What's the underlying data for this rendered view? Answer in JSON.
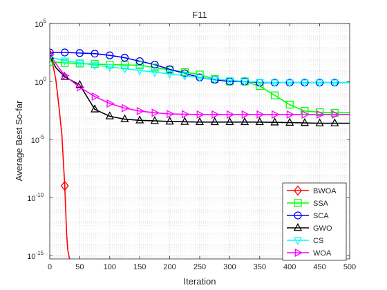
{
  "chart_data": {
    "type": "line",
    "title": "F11",
    "xlabel": "Iteration",
    "ylabel": "Average Best So-far",
    "xlim": [
      0,
      500
    ],
    "ylim_exponent": [
      -15.3,
      5
    ],
    "yscale": "log",
    "grid": true,
    "minor_grid": true,
    "legend_position": "bottom-right",
    "x_ticks": [
      0,
      50,
      100,
      150,
      200,
      250,
      300,
      350,
      400,
      450,
      500
    ],
    "y_ticks": [
      {
        "exp": 5,
        "label": "10",
        "sup": "5"
      },
      {
        "exp": 0,
        "label": "10",
        "sup": "0"
      },
      {
        "exp": -5,
        "label": "10",
        "sup": "-5"
      },
      {
        "exp": -10,
        "label": "10",
        "sup": "-10"
      },
      {
        "exp": -15,
        "label": "10",
        "sup": "-15"
      }
    ],
    "series": [
      {
        "name": "BWOA",
        "color": "#ff0000",
        "marker": "diamond",
        "points": [
          [
            0,
            2.3
          ],
          [
            5,
            1.5
          ],
          [
            10,
            0.2
          ],
          [
            15,
            -2
          ],
          [
            20,
            -4.5
          ],
          [
            25,
            -9
          ],
          [
            28,
            -13
          ],
          [
            30,
            -14.5
          ],
          [
            33,
            -15.3
          ]
        ],
        "marker_x": [
          0,
          25
        ]
      },
      {
        "name": "SSA",
        "color": "#00ff00",
        "marker": "square",
        "points": [
          [
            0,
            1.7
          ],
          [
            25,
            1.6
          ],
          [
            50,
            1.55
          ],
          [
            100,
            1.45
          ],
          [
            150,
            1.4
          ],
          [
            200,
            1.0
          ],
          [
            250,
            0.6
          ],
          [
            275,
            0.2
          ],
          [
            300,
            0.0
          ],
          [
            325,
            0.0
          ],
          [
            350,
            -0.4
          ],
          [
            375,
            -1.2
          ],
          [
            400,
            -2
          ],
          [
            425,
            -2.55
          ],
          [
            450,
            -2.65
          ],
          [
            475,
            -2.7
          ],
          [
            500,
            -2.7
          ]
        ],
        "marker_x": [
          0,
          25,
          50,
          75,
          100,
          125,
          150,
          175,
          200,
          225,
          250,
          275,
          300,
          325,
          350,
          375,
          400,
          425,
          450,
          475
        ]
      },
      {
        "name": "SCA",
        "color": "#0000ff",
        "marker": "circle",
        "points": [
          [
            0,
            2.5
          ],
          [
            25,
            2.5
          ],
          [
            50,
            2.45
          ],
          [
            75,
            2.4
          ],
          [
            100,
            2.25
          ],
          [
            125,
            2.05
          ],
          [
            150,
            1.75
          ],
          [
            175,
            1.45
          ],
          [
            200,
            1.05
          ],
          [
            225,
            0.7
          ],
          [
            250,
            0.35
          ],
          [
            275,
            0.15
          ],
          [
            300,
            0.0
          ],
          [
            325,
            0.0
          ],
          [
            350,
            -0.1
          ],
          [
            375,
            -0.1
          ],
          [
            400,
            -0.1
          ],
          [
            450,
            -0.1
          ],
          [
            500,
            -0.1
          ]
        ],
        "marker_x": [
          0,
          25,
          50,
          75,
          100,
          125,
          150,
          175,
          200,
          225,
          250,
          275,
          300,
          325,
          350,
          375,
          400,
          425,
          450,
          475
        ]
      },
      {
        "name": "GWO",
        "color": "#000000",
        "marker": "triangle-up",
        "points": [
          [
            0,
            2.2
          ],
          [
            10,
            1.2
          ],
          [
            25,
            0.4
          ],
          [
            50,
            -0.3
          ],
          [
            75,
            -2.4
          ],
          [
            100,
            -3.0
          ],
          [
            125,
            -3.25
          ],
          [
            150,
            -3.35
          ],
          [
            175,
            -3.4
          ],
          [
            200,
            -3.45
          ],
          [
            250,
            -3.5
          ],
          [
            300,
            -3.5
          ],
          [
            350,
            -3.5
          ],
          [
            400,
            -3.55
          ],
          [
            450,
            -3.6
          ],
          [
            500,
            -3.6
          ]
        ],
        "marker_x": [
          0,
          25,
          50,
          75,
          100,
          125,
          150,
          175,
          200,
          225,
          250,
          275,
          300,
          325,
          350,
          375,
          400,
          425,
          450,
          475
        ]
      },
      {
        "name": "CS",
        "color": "#00ffff",
        "marker": "triangle-down",
        "points": [
          [
            0,
            2.1
          ],
          [
            25,
            1.8
          ],
          [
            50,
            1.6
          ],
          [
            75,
            1.4
          ],
          [
            100,
            1.25
          ],
          [
            125,
            1.1
          ],
          [
            150,
            0.95
          ],
          [
            175,
            0.8
          ],
          [
            200,
            0.65
          ],
          [
            225,
            0.5
          ],
          [
            250,
            0.35
          ],
          [
            275,
            0.2
          ],
          [
            300,
            0.1
          ],
          [
            325,
            0.0
          ],
          [
            350,
            -0.05
          ],
          [
            375,
            -0.1
          ],
          [
            400,
            -0.1
          ],
          [
            450,
            -0.1
          ],
          [
            500,
            -0.1
          ]
        ],
        "marker_x": [
          0,
          25,
          50,
          75,
          100,
          125,
          150,
          175,
          200,
          225,
          250,
          275,
          300,
          325,
          350,
          375,
          400,
          425,
          450,
          475
        ]
      },
      {
        "name": "WOA",
        "color": "#ff00ff",
        "marker": "triangle-right",
        "points": [
          [
            0,
            2.3
          ],
          [
            15,
            1.2
          ],
          [
            25,
            0.5
          ],
          [
            50,
            -0.5
          ],
          [
            75,
            -1.3
          ],
          [
            100,
            -1.9
          ],
          [
            125,
            -2.3
          ],
          [
            150,
            -2.55
          ],
          [
            175,
            -2.7
          ],
          [
            200,
            -2.8
          ],
          [
            250,
            -2.85
          ],
          [
            300,
            -2.85
          ],
          [
            350,
            -2.85
          ],
          [
            400,
            -2.85
          ],
          [
            450,
            -2.85
          ],
          [
            500,
            -2.85
          ]
        ],
        "marker_x": [
          0,
          25,
          50,
          75,
          100,
          125,
          150,
          175,
          200,
          225,
          250,
          275,
          300,
          325,
          350,
          375,
          400,
          425,
          450,
          475
        ]
      }
    ]
  }
}
